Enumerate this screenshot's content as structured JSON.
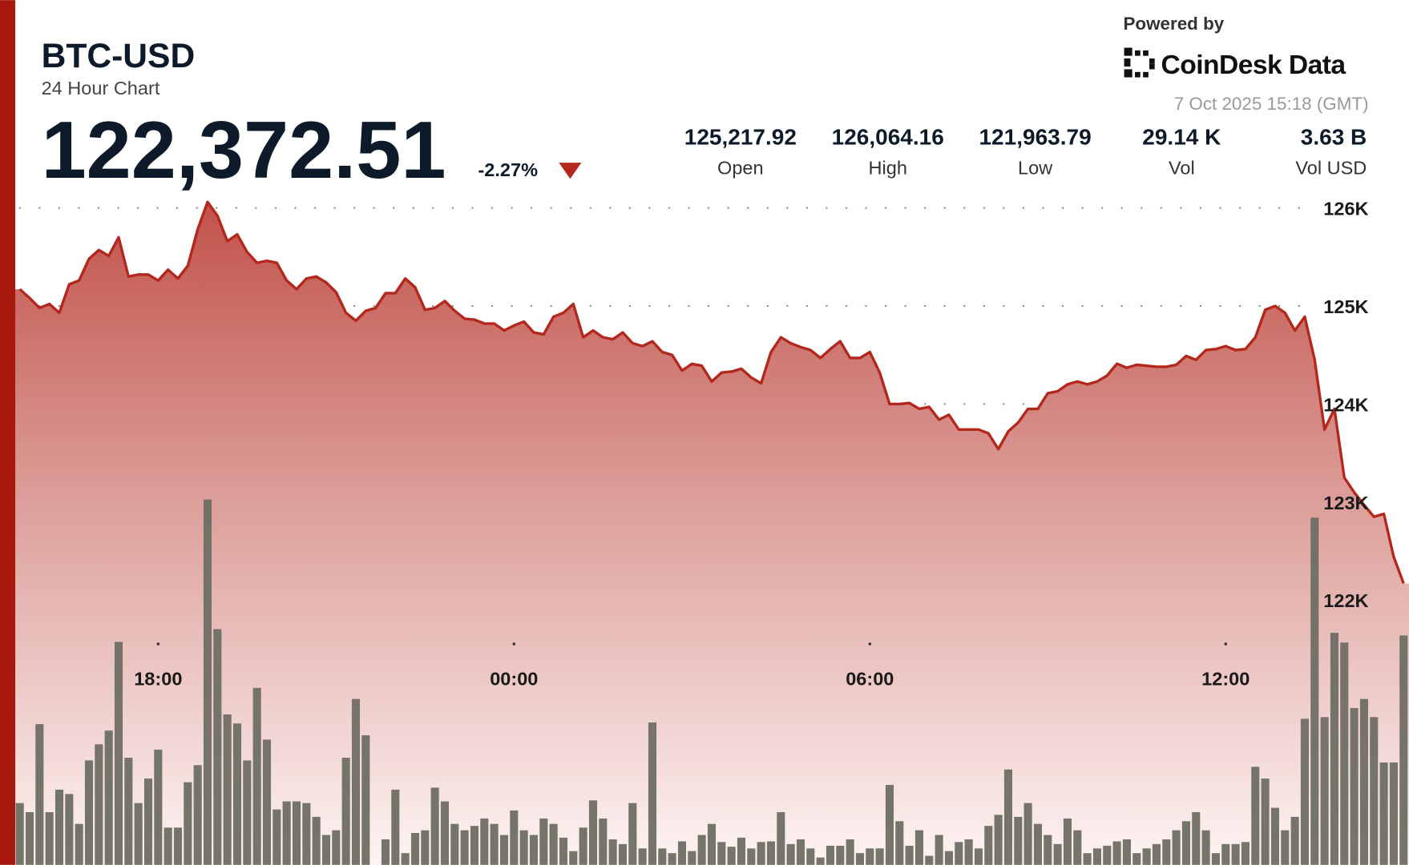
{
  "header": {
    "symbol": "BTC-USD",
    "subtitle": "24 Hour Chart",
    "price": "122,372.51",
    "change": "-2.27%",
    "powered_by": "Powered by",
    "brand": "CoinDesk Data",
    "timestamp": "7 Oct 2025 15:18 (GMT)"
  },
  "stats": [
    {
      "value": "125,217.92",
      "label": "Open"
    },
    {
      "value": "126,064.16",
      "label": "High"
    },
    {
      "value": "121,963.79",
      "label": "Low"
    },
    {
      "value": "29.14 K",
      "label": "Vol"
    },
    {
      "value": "3.63 B",
      "label": "Vol USD"
    }
  ],
  "chart_data": {
    "type": "area",
    "categories": [
      null,
      null,
      null,
      null,
      null,
      null,
      null,
      null,
      null,
      null,
      null,
      null,
      null,
      null,
      "18:00",
      null,
      null,
      null,
      null,
      null,
      null,
      null,
      null,
      null,
      null,
      null,
      null,
      null,
      null,
      null,
      null,
      null,
      null,
      null,
      null,
      null,
      null,
      null,
      null,
      null,
      null,
      null,
      null,
      null,
      null,
      null,
      null,
      null,
      null,
      null,
      "00:00",
      null,
      null,
      null,
      null,
      null,
      null,
      null,
      null,
      null,
      null,
      null,
      null,
      null,
      null,
      null,
      null,
      null,
      null,
      null,
      null,
      null,
      null,
      null,
      null,
      null,
      null,
      null,
      null,
      null,
      null,
      null,
      null,
      null,
      null,
      null,
      "06:00",
      null,
      null,
      null,
      null,
      null,
      null,
      null,
      null,
      null,
      null,
      null,
      null,
      null,
      null,
      null,
      null,
      null,
      null,
      null,
      null,
      null,
      null,
      null,
      null,
      null,
      null,
      null,
      null,
      null,
      null,
      null,
      null,
      null,
      null,
      null,
      "12:00",
      null,
      null,
      null,
      null,
      null,
      null,
      null,
      null,
      null,
      null,
      null,
      null,
      null,
      null,
      null,
      null,
      null,
      null
    ],
    "series": [
      {
        "type": "area",
        "color": "#b3271c",
        "values": [
          125170,
          125080,
          124980,
          125020,
          124930,
          125220,
          125260,
          125480,
          125570,
          125510,
          125700,
          125300,
          125320,
          125320,
          125260,
          125370,
          125280,
          125410,
          125780,
          126060,
          125920,
          125660,
          125730,
          125550,
          125440,
          125460,
          125440,
          125260,
          125170,
          125280,
          125300,
          125240,
          125140,
          124930,
          124850,
          124950,
          124980,
          125130,
          125130,
          125280,
          125190,
          124960,
          124980,
          125050,
          124950,
          124870,
          124860,
          124820,
          124820,
          124750,
          124800,
          124840,
          124730,
          124710,
          124890,
          124930,
          125020,
          124680,
          124750,
          124680,
          124660,
          124730,
          124620,
          124590,
          124640,
          124530,
          124500,
          124340,
          124410,
          124390,
          124230,
          124320,
          124330,
          124360,
          124270,
          124210,
          124530,
          124680,
          124620,
          124580,
          124550,
          124470,
          124560,
          124640,
          124470,
          124470,
          124530,
          124320,
          124000,
          124000,
          124010,
          123950,
          123970,
          123840,
          123890,
          123740,
          123740,
          123740,
          123700,
          123540,
          123720,
          123810,
          123950,
          123950,
          124110,
          124130,
          124200,
          124230,
          124200,
          124230,
          124290,
          124410,
          124370,
          124400,
          124390,
          124380,
          124380,
          124400,
          124490,
          124450,
          124550,
          124560,
          124590,
          124550,
          124560,
          124680,
          124960,
          125000,
          124930,
          124750,
          124890,
          124450,
          123740,
          123950,
          123250,
          123100,
          122970,
          122850,
          122880,
          122440,
          122170
        ]
      },
      {
        "type": "bar",
        "axis": "y2",
        "color": "#6e6e64",
        "values": [
          184,
          157,
          419,
          157,
          224,
          211,
          122,
          311,
          359,
          400,
          664,
          319,
          184,
          257,
          343,
          111,
          111,
          246,
          297,
          1088,
          702,
          448,
          421,
          311,
          527,
          373,
          165,
          189,
          189,
          184,
          143,
          89,
          103,
          319,
          494,
          386,
          0,
          76,
          224,
          35,
          95,
          103,
          230,
          189,
          122,
          103,
          116,
          138,
          122,
          89,
          162,
          103,
          89,
          138,
          122,
          81,
          41,
          111,
          192,
          138,
          76,
          62,
          184,
          49,
          424,
          49,
          35,
          70,
          41,
          89,
          122,
          68,
          54,
          81,
          49,
          68,
          70,
          157,
          62,
          76,
          49,
          22,
          57,
          57,
          76,
          35,
          49,
          49,
          238,
          130,
          57,
          103,
          27,
          89,
          41,
          68,
          76,
          49,
          116,
          149,
          284,
          143,
          184,
          122,
          89,
          62,
          138,
          103,
          35,
          49,
          57,
          70,
          76,
          35,
          49,
          62,
          76,
          103,
          130,
          157,
          103,
          35,
          62,
          62,
          68,
          292,
          257,
          170,
          103,
          143,
          435,
          1034,
          440,
          691,
          662,
          467,
          494,
          440,
          305,
          305,
          683
        ]
      }
    ],
    "ylim": [
      119300,
      126150
    ],
    "yticks": [
      {
        "value": 126000,
        "label": "126K"
      },
      {
        "value": 125000,
        "label": "125K"
      },
      {
        "value": 124000,
        "label": "124K"
      },
      {
        "value": 123000,
        "label": "123K"
      },
      {
        "value": 122000,
        "label": "122K"
      }
    ],
    "y2lim": [
      0,
      2000
    ],
    "grid": true
  }
}
